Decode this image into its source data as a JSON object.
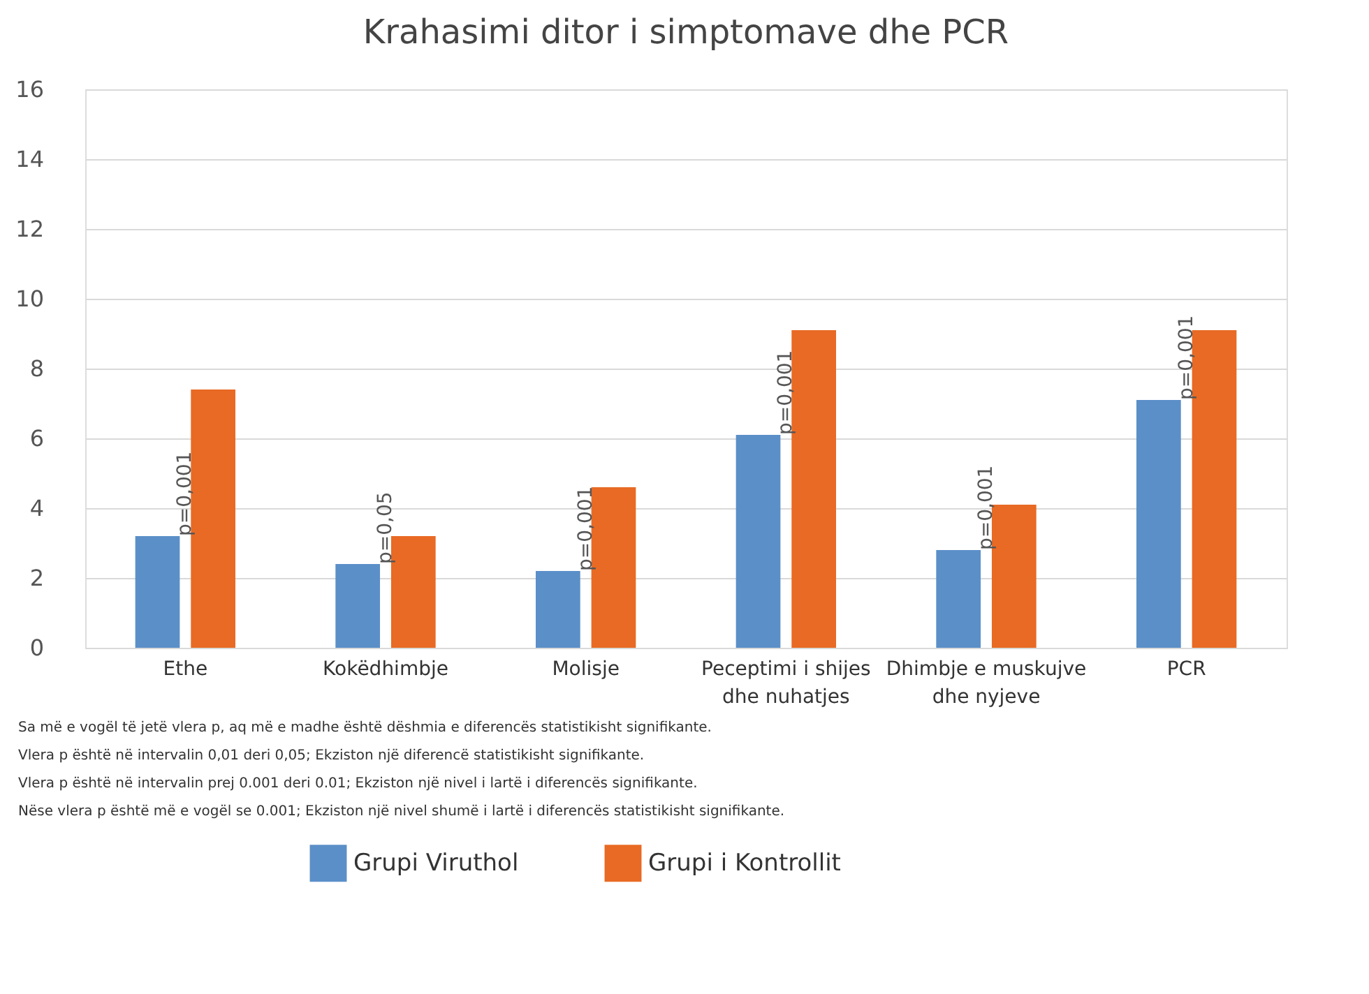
{
  "chart_data": {
    "type": "bar",
    "title": "Krahasimi ditor i simptomave dhe PCR",
    "categories": [
      "Ethe",
      "Kokëdhimbje",
      "Molisje",
      "Peceptimi i shijes dhe nuhatjes",
      "Dhimbje e muskujve dhe nyjeve",
      "PCR"
    ],
    "series": [
      {
        "name": "Grupi Viruthol",
        "color": "#5b8fc8",
        "values": [
          3.2,
          2.4,
          2.2,
          6.1,
          2.8,
          7.1
        ]
      },
      {
        "name": "Grupi i Kontrollit",
        "color": "#e86a24",
        "values": [
          7.4,
          3.2,
          4.6,
          9.1,
          4.1,
          9.1
        ]
      }
    ],
    "ylim": [
      0,
      16
    ],
    "yticks": [
      0,
      2,
      4,
      6,
      8,
      10,
      12,
      14,
      16
    ],
    "grid": "y",
    "legend": "bottom",
    "annotations": [
      {
        "text": "p=0,001",
        "x": "Ethe",
        "y": 3.2
      },
      {
        "text": "p=0,05",
        "x": "Kokëdhimbje",
        "y": 2.4
      },
      {
        "text": "p=0,001",
        "x": "Molisje",
        "y": 2.2
      },
      {
        "text": "p=0,001",
        "x": "Peceptimi i shijes dhe nuhatjes",
        "y": 6.1
      },
      {
        "text": "p=0,001",
        "x": "Dhimbje e muskujve dhe nyjeve",
        "y": 2.8
      },
      {
        "text": "p=0,001",
        "x": "PCR",
        "y": 7.1
      },
      "Sa më e vogël të jetë vlera p, aq më e madhe është dëshmia e diferencës statistikisht signifikante.",
      "Vlera p është në intervalin 0,01 deri 0,05; Ekziston një diferencë statistikisht signifikante.",
      "Vlera p është në intervalin prej 0.001 deri 0.01; Ekziston një nivel i lartë i diferencës signifikante.",
      "Nëse vlera p është më e vogël se 0.001; Ekziston një nivel shumë i lartë i diferencës statistikisht signifikante."
    ]
  }
}
